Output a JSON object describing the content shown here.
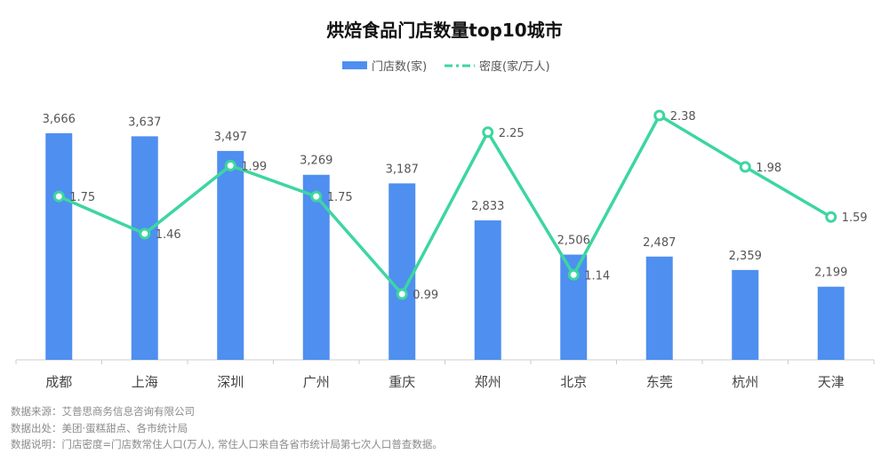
{
  "chart_data": {
    "type": "bar+line",
    "title": "烘焙食品门店数量top10城市",
    "categories": [
      "成都",
      "上海",
      "深圳",
      "广州",
      "重庆",
      "郑州",
      "北京",
      "东莞",
      "杭州",
      "天津"
    ],
    "series": [
      {
        "name": "门店数(家)",
        "type": "bar",
        "color": "#4e8ff0",
        "values": [
          3666,
          3637,
          3497,
          3269,
          3187,
          2833,
          2506,
          2487,
          2359,
          2199
        ],
        "labels": [
          "3,666",
          "3,637",
          "3,497",
          "3,269",
          "3,187",
          "2,833",
          "2,506",
          "2,487",
          "2,359",
          "2,199"
        ]
      },
      {
        "name": "密度(家/万人)",
        "type": "line",
        "color": "#3dd6a0",
        "values": [
          1.75,
          1.46,
          1.99,
          1.75,
          0.99,
          2.25,
          1.14,
          2.38,
          1.98,
          1.59
        ],
        "labels": [
          "1.75",
          "1.46",
          "1.99",
          "1.75",
          "0.99",
          "2.25",
          "1.14",
          "2.38",
          "1.98",
          "1.59"
        ]
      }
    ],
    "bar_axis_range": [
      1500,
      3666
    ],
    "line_axis_range": [
      0.99,
      2.38
    ],
    "legend": "top-center",
    "grid": false
  },
  "notes": [
    "数据来源：艾普思商务信息咨询有限公司",
    "数据出处：美团·蛋糕甜点、各市统计局",
    "数据说明：门店密度=门店数常住人口(万人), 常住人口来自各省市统计局第七次人口普查数据。"
  ]
}
